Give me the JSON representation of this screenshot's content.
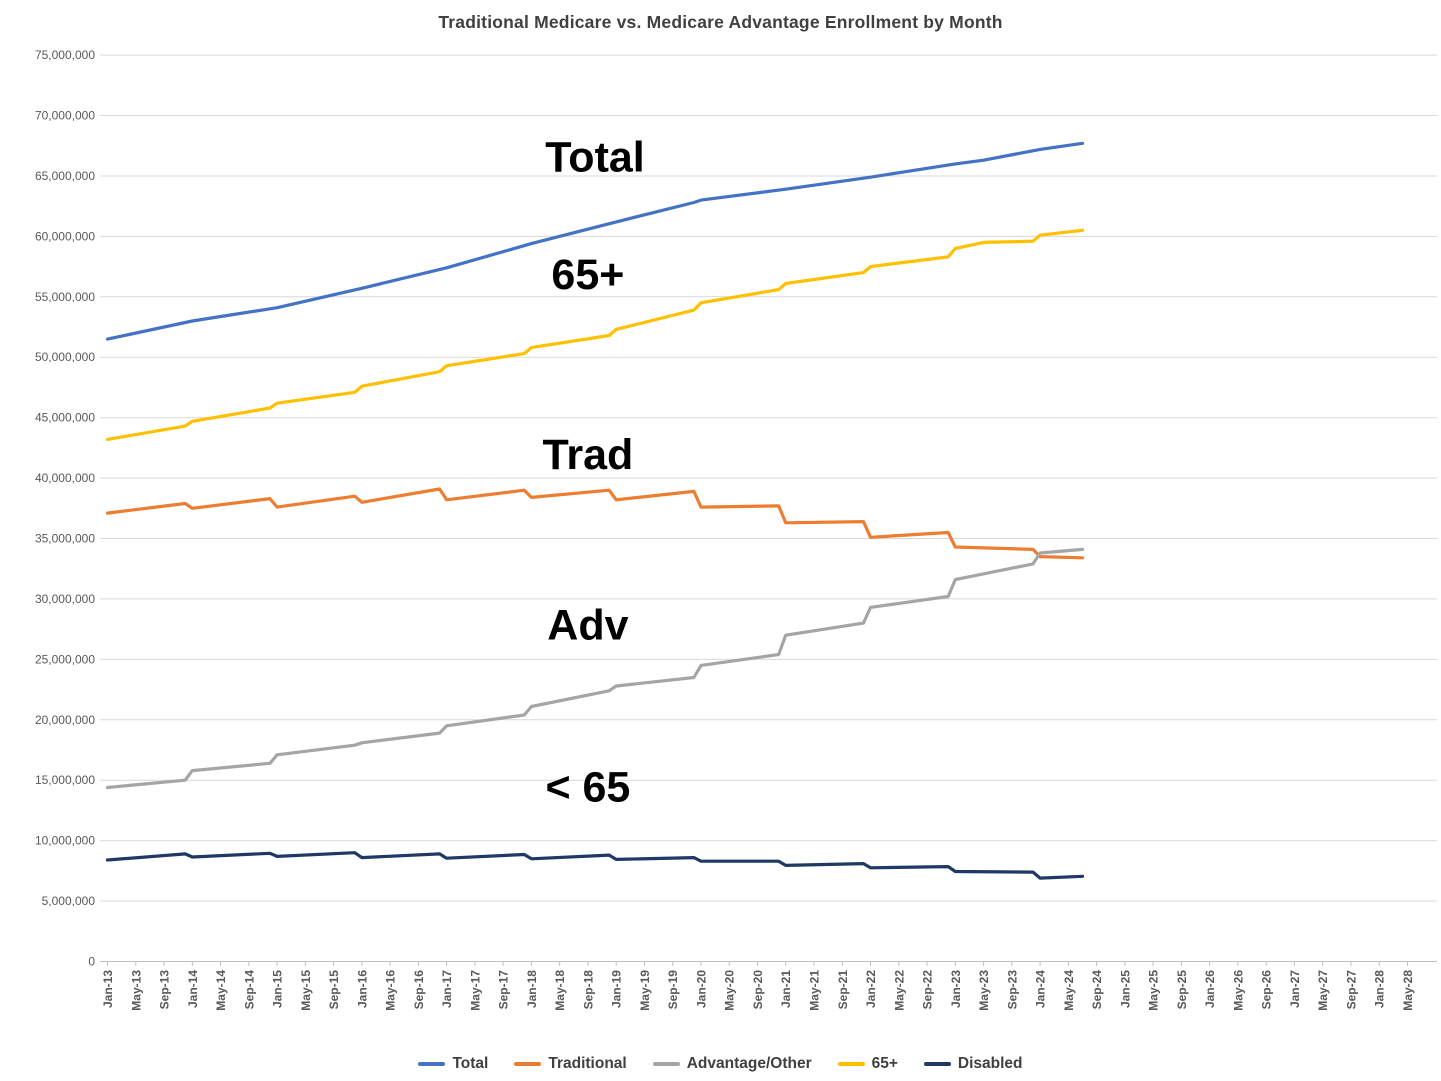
{
  "chart_data": {
    "type": "line",
    "title": "Traditional Medicare vs. Medicare Advantage Enrollment by Month",
    "legend_position": "bottom",
    "grid": "horizontal",
    "y_axis": {
      "min": 0,
      "max": 75000000,
      "tick_interval": 5000000,
      "tick_labels": [
        "0",
        "5,000,000",
        "10,000,000",
        "15,000,000",
        "20,000,000",
        "25,000,000",
        "30,000,000",
        "35,000,000",
        "40,000,000",
        "45,000,000",
        "50,000,000",
        "55,000,000",
        "60,000,000",
        "65,000,000",
        "70,000,000",
        "75,000,000"
      ]
    },
    "x_axis": {
      "first_month": "Jan-13",
      "last_month": "May-28",
      "months_per_tick": 4,
      "total_months": 184,
      "tick_labels": [
        "Jan-13",
        "May-13",
        "Sep-13",
        "Jan-14",
        "May-14",
        "Sep-14",
        "Jan-15",
        "May-15",
        "Sep-15",
        "Jan-16",
        "May-16",
        "Sep-16",
        "Jan-17",
        "May-17",
        "Sep-17",
        "Jan-18",
        "May-18",
        "Sep-18",
        "Jan-19",
        "May-19",
        "Sep-19",
        "Jan-20",
        "May-20",
        "Sep-20",
        "Jan-21",
        "May-21",
        "Sep-21",
        "Jan-22",
        "May-22",
        "Sep-22",
        "Jan-23",
        "May-23",
        "Sep-23",
        "Jan-24",
        "May-24",
        "Sep-24",
        "Jan-25",
        "May-25",
        "Sep-25",
        "Jan-26",
        "May-26",
        "Sep-26",
        "Jan-27",
        "May-27",
        "Sep-27",
        "Jan-28",
        "May-28"
      ]
    },
    "annotations": [
      {
        "text": "Total",
        "month": "Oct-18",
        "value": 66300000
      },
      {
        "text": "65+",
        "month": "Sep-18",
        "value": 56600000
      },
      {
        "text": "Trad",
        "month": "Sep-18",
        "value": 41700000
      },
      {
        "text": "Adv",
        "month": "Sep-18",
        "value": 27600000
      },
      {
        "text": "< 65",
        "month": "Sep-18",
        "value": 14200000
      }
    ],
    "series": [
      {
        "name": "Total",
        "color": "#4472C4",
        "points": [
          [
            "Jan-13",
            51500000
          ],
          [
            "Jan-14",
            53000000
          ],
          [
            "Jan-15",
            54100000
          ],
          [
            "Jan-16",
            55700000
          ],
          [
            "Jan-17",
            57400000
          ],
          [
            "Jan-18",
            59400000
          ],
          [
            "Jan-19",
            61200000
          ],
          [
            "Dec-19",
            62800000
          ],
          [
            "Jan-20",
            63000000
          ],
          [
            "Jan-21",
            63900000
          ],
          [
            "Jan-22",
            64900000
          ],
          [
            "Jan-23",
            66000000
          ],
          [
            "May-23",
            66300000
          ],
          [
            "Jan-24",
            67200000
          ],
          [
            "Jul-24",
            67700000
          ]
        ]
      },
      {
        "name": "Traditional",
        "color": "#ED7D31",
        "points": [
          [
            "Jan-13",
            37100000
          ],
          [
            "Dec-13",
            37900000
          ],
          [
            "Jan-14",
            37500000
          ],
          [
            "Dec-14",
            38300000
          ],
          [
            "Jan-15",
            37600000
          ],
          [
            "Dec-15",
            38500000
          ],
          [
            "Jan-16",
            38000000
          ],
          [
            "Dec-16",
            39100000
          ],
          [
            "Jan-17",
            38200000
          ],
          [
            "Dec-17",
            39000000
          ],
          [
            "Jan-18",
            38400000
          ],
          [
            "Dec-18",
            39000000
          ],
          [
            "Jan-19",
            38200000
          ],
          [
            "Dec-19",
            38900000
          ],
          [
            "Jan-20",
            37600000
          ],
          [
            "Dec-20",
            37700000
          ],
          [
            "Jan-21",
            36300000
          ],
          [
            "Dec-21",
            36400000
          ],
          [
            "Jan-22",
            35100000
          ],
          [
            "Dec-22",
            35500000
          ],
          [
            "Jan-23",
            34300000
          ],
          [
            "Dec-23",
            34100000
          ],
          [
            "Jan-24",
            33500000
          ],
          [
            "Jul-24",
            33400000
          ]
        ]
      },
      {
        "name": "Advantage/Other",
        "color": "#A5A5A5",
        "points": [
          [
            "Jan-13",
            14400000
          ],
          [
            "Dec-13",
            15000000
          ],
          [
            "Jan-14",
            15800000
          ],
          [
            "Dec-14",
            16400000
          ],
          [
            "Jan-15",
            17100000
          ],
          [
            "Dec-15",
            17900000
          ],
          [
            "Jan-16",
            18100000
          ],
          [
            "Dec-16",
            18900000
          ],
          [
            "Jan-17",
            19500000
          ],
          [
            "Dec-17",
            20400000
          ],
          [
            "Jan-18",
            21100000
          ],
          [
            "Dec-18",
            22400000
          ],
          [
            "Jan-19",
            22800000
          ],
          [
            "Dec-19",
            23500000
          ],
          [
            "Jan-20",
            24500000
          ],
          [
            "Dec-20",
            25400000
          ],
          [
            "Jan-21",
            27000000
          ],
          [
            "Dec-21",
            28000000
          ],
          [
            "Jan-22",
            29300000
          ],
          [
            "Dec-22",
            30200000
          ],
          [
            "Jan-23",
            31600000
          ],
          [
            "Dec-23",
            32900000
          ],
          [
            "Jan-24",
            33800000
          ],
          [
            "Jul-24",
            34100000
          ]
        ]
      },
      {
        "name": "65+",
        "color": "#FFC000",
        "points": [
          [
            "Jan-13",
            43200000
          ],
          [
            "Dec-13",
            44300000
          ],
          [
            "Jan-14",
            44700000
          ],
          [
            "Dec-14",
            45800000
          ],
          [
            "Jan-15",
            46200000
          ],
          [
            "Dec-15",
            47100000
          ],
          [
            "Jan-16",
            47600000
          ],
          [
            "Dec-16",
            48800000
          ],
          [
            "Jan-17",
            49300000
          ],
          [
            "Dec-17",
            50300000
          ],
          [
            "Jan-18",
            50800000
          ],
          [
            "Dec-18",
            51800000
          ],
          [
            "Jan-19",
            52300000
          ],
          [
            "Dec-19",
            53900000
          ],
          [
            "Jan-20",
            54500000
          ],
          [
            "Dec-20",
            55600000
          ],
          [
            "Jan-21",
            56100000
          ],
          [
            "Dec-21",
            57000000
          ],
          [
            "Jan-22",
            57500000
          ],
          [
            "Dec-22",
            58300000
          ],
          [
            "Jan-23",
            59000000
          ],
          [
            "May-23",
            59500000
          ],
          [
            "Dec-23",
            59600000
          ],
          [
            "Jan-24",
            60100000
          ],
          [
            "Jul-24",
            60500000
          ]
        ]
      },
      {
        "name": "Disabled",
        "color": "#1F3864",
        "points": [
          [
            "Jan-13",
            8400000
          ],
          [
            "Dec-13",
            8900000
          ],
          [
            "Jan-14",
            8650000
          ],
          [
            "Dec-14",
            8950000
          ],
          [
            "Jan-15",
            8700000
          ],
          [
            "Dec-15",
            9000000
          ],
          [
            "Jan-16",
            8600000
          ],
          [
            "Dec-16",
            8900000
          ],
          [
            "Jan-17",
            8550000
          ],
          [
            "Dec-17",
            8850000
          ],
          [
            "Jan-18",
            8500000
          ],
          [
            "Dec-18",
            8800000
          ],
          [
            "Jan-19",
            8450000
          ],
          [
            "Dec-19",
            8600000
          ],
          [
            "Jan-20",
            8300000
          ],
          [
            "Dec-20",
            8300000
          ],
          [
            "Jan-21",
            7950000
          ],
          [
            "Dec-21",
            8100000
          ],
          [
            "Jan-22",
            7750000
          ],
          [
            "Dec-22",
            7850000
          ],
          [
            "Jan-23",
            7450000
          ],
          [
            "Dec-23",
            7400000
          ],
          [
            "Jan-24",
            6900000
          ],
          [
            "Jul-24",
            7050000
          ]
        ]
      }
    ],
    "styles": {
      "grid_color": "#D9D9D9",
      "axis_line_color": "#BFBFBF",
      "axis_label_color": "#595959",
      "annotation_color": "#000000",
      "line_width": 3.2
    }
  }
}
